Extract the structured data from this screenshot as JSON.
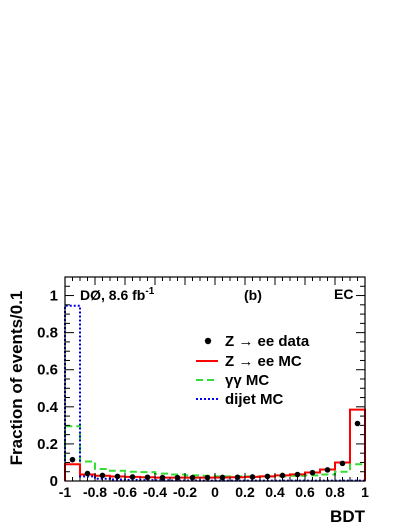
{
  "chart_data": {
    "type": "step-histogram",
    "xlabel": "BDT",
    "ylabel": "Fraction of events/0.1",
    "xlim": [
      -1,
      1
    ],
    "ylim": [
      0,
      1.1
    ],
    "xticks": [
      "-1",
      "-0.8",
      "-0.6",
      "-0.4",
      "-0.2",
      "0",
      "0.2",
      "0.4",
      "0.6",
      "0.8",
      "1"
    ],
    "yticks": [
      "0",
      "0.2",
      "0.4",
      "0.6",
      "0.8",
      "1"
    ],
    "annotations": {
      "experiment": "DØ, 8.6 fb",
      "lumi_exp": "-1",
      "panel": "(b)",
      "region": "EC"
    },
    "bin_edges": [
      -1.0,
      -0.9,
      -0.8,
      -0.7,
      -0.6,
      -0.5,
      -0.4,
      -0.3,
      -0.2,
      -0.1,
      0.0,
      0.1,
      0.2,
      0.3,
      0.4,
      0.5,
      0.6,
      0.7,
      0.8,
      0.9,
      1.0
    ],
    "series": [
      {
        "name": "Z → ee data",
        "style": "points",
        "color": "#000000",
        "x": [
          -0.95,
          -0.85,
          -0.75,
          -0.65,
          -0.55,
          -0.45,
          -0.35,
          -0.25,
          -0.15,
          -0.05,
          0.05,
          0.15,
          0.25,
          0.35,
          0.45,
          0.55,
          0.65,
          0.75,
          0.85,
          0.95
        ],
        "values": [
          0.115,
          0.04,
          0.03,
          0.025,
          0.022,
          0.02,
          0.018,
          0.018,
          0.018,
          0.018,
          0.019,
          0.02,
          0.022,
          0.025,
          0.03,
          0.035,
          0.045,
          0.06,
          0.095,
          0.31
        ]
      },
      {
        "name": "Z → ee MC",
        "style": "solid",
        "color": "#ff0000",
        "values": [
          0.09,
          0.035,
          0.028,
          0.024,
          0.022,
          0.02,
          0.018,
          0.018,
          0.018,
          0.018,
          0.019,
          0.02,
          0.022,
          0.025,
          0.03,
          0.036,
          0.046,
          0.062,
          0.1,
          0.385
        ]
      },
      {
        "name": "γγ MC",
        "style": "dashed",
        "color": "#33dd33",
        "values": [
          0.295,
          0.105,
          0.065,
          0.055,
          0.05,
          0.048,
          0.04,
          0.035,
          0.03,
          0.028,
          0.025,
          0.025,
          0.025,
          0.025,
          0.025,
          0.028,
          0.03,
          0.035,
          0.05,
          0.09
        ]
      },
      {
        "name": "dijet MC",
        "style": "dotted",
        "color": "#0000ee",
        "values": [
          0.945,
          0.025,
          0.012,
          0.008,
          0.006,
          0.005,
          0.004,
          0.003,
          0.003,
          0.002,
          0.002,
          0.002,
          0.002,
          0.002,
          0.002,
          0.002,
          0.002,
          0.002,
          0.002,
          0.002
        ]
      }
    ],
    "legend": {
      "placement": "upper-right",
      "entries": [
        "Z → ee data",
        "Z → ee MC",
        "γγ MC",
        "dijet MC"
      ]
    }
  }
}
